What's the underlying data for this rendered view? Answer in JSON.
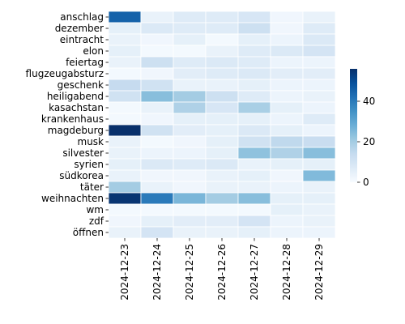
{
  "chart_data": {
    "type": "heatmap",
    "title": "",
    "xlabel": "",
    "ylabel": "",
    "x_categories": [
      "2024-12-23",
      "2024-12-24",
      "2024-12-25",
      "2024-12-26",
      "2024-12-27",
      "2024-12-28",
      "2024-12-29"
    ],
    "y_categories": [
      "anschlag",
      "dezember",
      "eintracht",
      "elon",
      "feiertag",
      "flugzeugabsturz",
      "geschenk",
      "heiligabend",
      "kasachstan",
      "krankenhaus",
      "magdeburg",
      "musk",
      "silvester",
      "syrien",
      "südkorea",
      "täter",
      "weihnachten",
      "wm",
      "zdf",
      "öffnen"
    ],
    "values": [
      [
        45,
        4,
        7,
        7,
        9,
        2,
        4
      ],
      [
        5,
        8,
        7,
        7,
        12,
        2,
        7
      ],
      [
        4,
        2,
        5,
        1,
        5,
        3,
        8
      ],
      [
        5,
        1,
        1,
        4,
        7,
        8,
        10
      ],
      [
        4,
        12,
        7,
        8,
        7,
        3,
        3
      ],
      [
        1,
        2,
        6,
        7,
        8,
        6,
        6
      ],
      [
        14,
        11,
        4,
        4,
        5,
        3,
        3
      ],
      [
        11,
        24,
        20,
        12,
        7,
        3,
        4
      ],
      [
        1,
        4,
        18,
        9,
        19,
        5,
        3
      ],
      [
        1,
        2,
        5,
        5,
        5,
        3,
        7
      ],
      [
        56,
        11,
        6,
        5,
        8,
        5,
        3
      ],
      [
        4,
        1,
        2,
        5,
        11,
        15,
        13
      ],
      [
        4,
        3,
        3,
        5,
        23,
        18,
        24
      ],
      [
        5,
        8,
        7,
        8,
        4,
        5,
        5
      ],
      [
        4,
        2,
        2,
        4,
        5,
        2,
        25
      ],
      [
        20,
        4,
        2,
        4,
        4,
        3,
        4
      ],
      [
        55,
        40,
        26,
        20,
        24,
        5,
        5
      ],
      [
        1,
        1,
        1,
        1,
        1,
        5,
        4
      ],
      [
        2,
        5,
        6,
        6,
        10,
        3,
        4
      ],
      [
        4,
        10,
        4,
        4,
        5,
        3,
        3
      ]
    ],
    "colorbar": {
      "min": 0,
      "max": 56,
      "ticks": [
        "0",
        "20",
        "40"
      ],
      "tick_values": [
        0,
        20,
        40
      ]
    },
    "colormap": "Blues",
    "cell_border_color": "#ffffff"
  }
}
